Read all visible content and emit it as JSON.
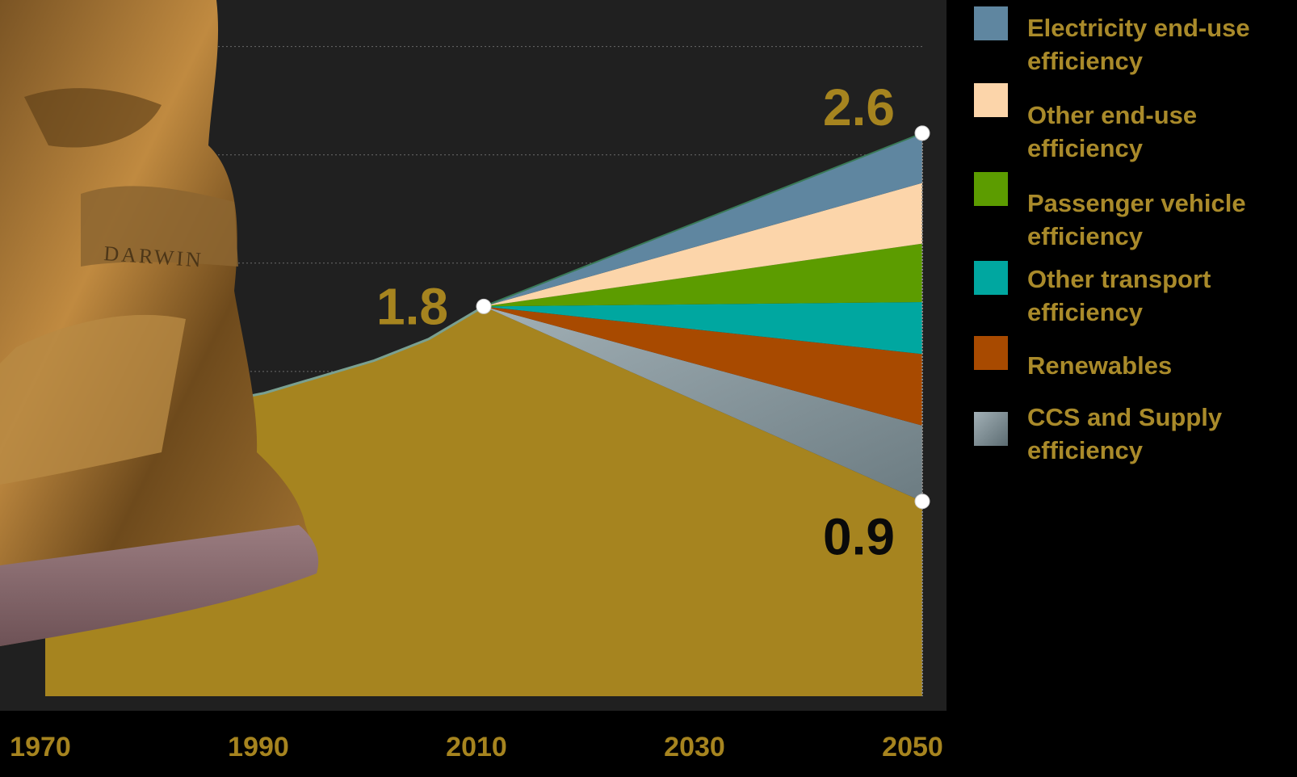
{
  "chart_data": {
    "type": "area",
    "x_ticks": [
      "1970",
      "1990",
      "2010",
      "2030",
      "2050"
    ],
    "xlim": [
      1970,
      2050
    ],
    "ylim": [
      0,
      3.2
    ],
    "grid": true,
    "legend_position": "right",
    "history": {
      "x": [
        1970,
        1975,
        1985,
        1990,
        2000,
        2005,
        2010
      ],
      "y": [
        1.25,
        1.3,
        1.35,
        1.4,
        1.55,
        1.65,
        1.8
      ]
    },
    "wedge_origin": {
      "x": 2010,
      "y": 1.8
    },
    "wedge_end_x": 2050,
    "boundaries_2050": [
      0.9,
      1.25,
      1.58,
      1.82,
      2.09,
      2.37,
      2.6
    ],
    "series": [
      {
        "name": "CCS and Supply efficiency",
        "color": "#8a9aa0"
      },
      {
        "name": "Renewables",
        "color": "#a84a00"
      },
      {
        "name": "Other transport efficiency",
        "color": "#00a7a0"
      },
      {
        "name": "Passenger vehicle efficiency",
        "color": "#5c9c00"
      },
      {
        "name": "Other end-use efficiency",
        "color": "#fcd5aa"
      },
      {
        "name": "Electricity end-use efficiency",
        "color": "#5f86a0"
      }
    ],
    "base_color": "#a6841f",
    "annotations": [
      {
        "text": "1.8",
        "x": 2010,
        "y": 1.8,
        "color": "#a6841f"
      },
      {
        "text": "2.6",
        "x": 2050,
        "y": 2.6,
        "color": "#a6841f"
      },
      {
        "text": "0.9",
        "x": 2050,
        "y": 0.9,
        "color": "#0a0a0a"
      }
    ]
  },
  "legend": {
    "items": [
      {
        "label": "Electricity end-use efficiency",
        "color": "#5f86a0"
      },
      {
        "label": "Other end-use efficiency",
        "color": "#fcd5aa"
      },
      {
        "label": "Passenger vehicle efficiency",
        "color": "#5c9c00"
      },
      {
        "label": "Other transport efficiency",
        "color": "#00a7a0"
      },
      {
        "label": "Renewables",
        "color": "#a84a00"
      },
      {
        "label": "CCS and Supply efficiency",
        "color": "#8a9aa0"
      }
    ]
  },
  "statue": {
    "engraving": "DARWIN"
  }
}
